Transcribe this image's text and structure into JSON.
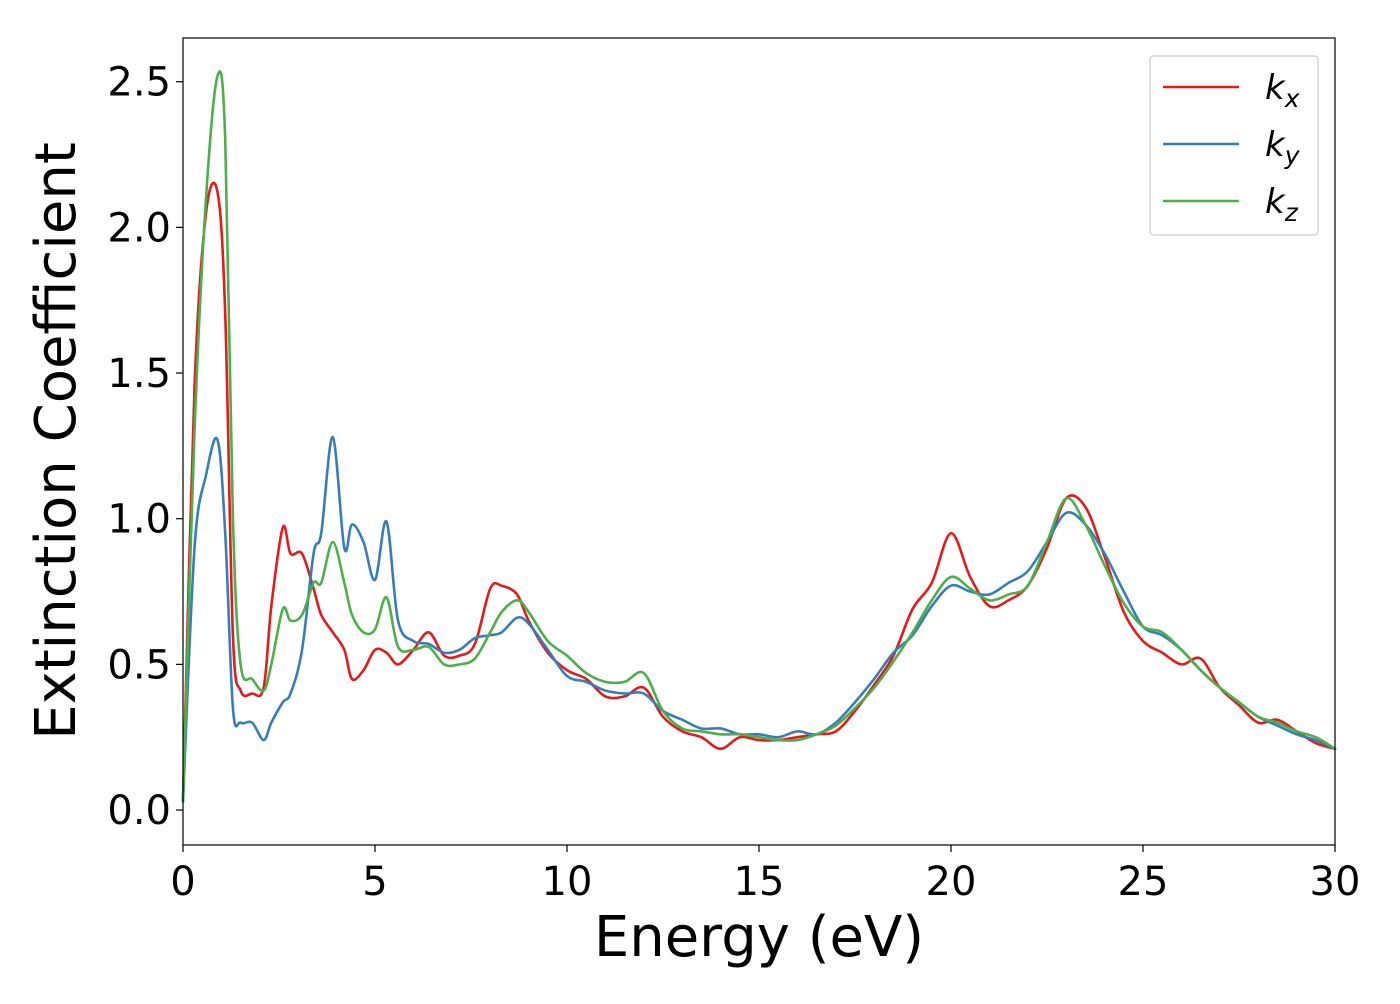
{
  "chart_data": {
    "type": "line",
    "title": "",
    "xlabel": "Energy (eV)",
    "ylabel": "Extinction Coefficient",
    "xlim": [
      0,
      30
    ],
    "ylim": [
      -0.12,
      2.65
    ],
    "xticks": [
      0,
      5,
      10,
      15,
      20,
      25,
      30
    ],
    "yticks": [
      0.0,
      0.5,
      1.0,
      1.5,
      2.0,
      2.5
    ],
    "xtick_labels": [
      "0",
      "5",
      "10",
      "15",
      "20",
      "25",
      "30"
    ],
    "ytick_labels": [
      "0.0",
      "0.5",
      "1.0",
      "1.5",
      "2.0",
      "2.5"
    ],
    "grid": false,
    "legend_position": "top-right",
    "series": [
      {
        "name": "k",
        "subscript": "x",
        "color": "#e41a1c",
        "x": [
          0,
          0.3,
          0.6,
          0.9,
          1.1,
          1.3,
          1.5,
          1.8,
          2.1,
          2.3,
          2.6,
          2.8,
          3.1,
          3.4,
          3.6,
          3.9,
          4.2,
          4.4,
          4.7,
          5.0,
          5.3,
          5.6,
          6.0,
          6.4,
          6.8,
          7.2,
          7.6,
          8.0,
          8.3,
          8.7,
          9.0,
          9.5,
          10.0,
          10.5,
          11.0,
          11.5,
          12.0,
          12.5,
          13.0,
          13.5,
          14.0,
          14.5,
          15.0,
          15.5,
          16.0,
          16.5,
          17.0,
          17.5,
          18.0,
          18.5,
          19.0,
          19.5,
          20.0,
          20.5,
          21.0,
          21.5,
          22.0,
          22.5,
          23.0,
          23.5,
          24.0,
          24.5,
          25.0,
          25.5,
          26.0,
          26.5,
          27.0,
          27.5,
          28.0,
          28.5,
          29.0,
          29.5,
          30.0
        ],
        "y": [
          0.03,
          1.45,
          2.05,
          2.12,
          1.7,
          0.6,
          0.41,
          0.4,
          0.42,
          0.7,
          0.97,
          0.88,
          0.88,
          0.76,
          0.67,
          0.61,
          0.55,
          0.45,
          0.48,
          0.55,
          0.54,
          0.5,
          0.55,
          0.61,
          0.53,
          0.53,
          0.57,
          0.76,
          0.77,
          0.74,
          0.65,
          0.54,
          0.48,
          0.45,
          0.39,
          0.39,
          0.42,
          0.32,
          0.27,
          0.25,
          0.21,
          0.25,
          0.24,
          0.24,
          0.25,
          0.26,
          0.27,
          0.34,
          0.43,
          0.53,
          0.69,
          0.78,
          0.95,
          0.8,
          0.7,
          0.72,
          0.77,
          0.9,
          1.07,
          1.04,
          0.87,
          0.68,
          0.58,
          0.54,
          0.5,
          0.52,
          0.42,
          0.36,
          0.3,
          0.31,
          0.27,
          0.23,
          0.21
        ]
      },
      {
        "name": "k",
        "subscript": "y",
        "color": "#377eb8",
        "x": [
          0,
          0.3,
          0.6,
          0.9,
          1.1,
          1.3,
          1.5,
          1.8,
          2.1,
          2.3,
          2.6,
          2.8,
          3.1,
          3.4,
          3.6,
          3.9,
          4.2,
          4.4,
          4.7,
          5.0,
          5.3,
          5.6,
          6.0,
          6.4,
          6.8,
          7.2,
          7.6,
          8.0,
          8.3,
          8.7,
          9.0,
          9.5,
          10.0,
          10.5,
          11.0,
          11.5,
          12.0,
          12.5,
          13.0,
          13.5,
          14.0,
          14.5,
          15.0,
          15.5,
          16.0,
          16.5,
          17.0,
          17.5,
          18.0,
          18.5,
          19.0,
          19.5,
          20.0,
          20.5,
          21.0,
          21.5,
          22.0,
          22.5,
          23.0,
          23.5,
          24.0,
          24.5,
          25.0,
          25.5,
          26.0,
          26.5,
          27.0,
          27.5,
          28.0,
          28.5,
          29.0,
          29.5,
          30.0
        ],
        "y": [
          0.03,
          0.9,
          1.15,
          1.27,
          0.95,
          0.35,
          0.3,
          0.3,
          0.24,
          0.3,
          0.37,
          0.4,
          0.55,
          0.88,
          0.95,
          1.28,
          0.9,
          0.98,
          0.92,
          0.79,
          0.99,
          0.65,
          0.58,
          0.57,
          0.54,
          0.55,
          0.59,
          0.6,
          0.61,
          0.66,
          0.64,
          0.55,
          0.46,
          0.44,
          0.41,
          0.4,
          0.4,
          0.34,
          0.31,
          0.28,
          0.28,
          0.26,
          0.26,
          0.25,
          0.27,
          0.26,
          0.3,
          0.37,
          0.45,
          0.54,
          0.6,
          0.7,
          0.77,
          0.75,
          0.74,
          0.78,
          0.82,
          0.92,
          1.02,
          0.98,
          0.88,
          0.75,
          0.63,
          0.6,
          0.55,
          0.48,
          0.42,
          0.37,
          0.32,
          0.29,
          0.26,
          0.24,
          0.21
        ]
      },
      {
        "name": "k",
        "subscript": "z",
        "color": "#4daf4a",
        "x": [
          0,
          0.3,
          0.6,
          0.9,
          1.1,
          1.3,
          1.5,
          1.8,
          2.1,
          2.3,
          2.6,
          2.8,
          3.1,
          3.4,
          3.6,
          3.9,
          4.2,
          4.4,
          4.7,
          5.0,
          5.3,
          5.6,
          6.0,
          6.4,
          6.8,
          7.2,
          7.6,
          8.0,
          8.3,
          8.7,
          9.0,
          9.5,
          10.0,
          10.5,
          11.0,
          11.5,
          12.0,
          12.5,
          13.0,
          13.5,
          14.0,
          14.5,
          15.0,
          15.5,
          16.0,
          16.5,
          17.0,
          17.5,
          18.0,
          18.5,
          19.0,
          19.5,
          20.0,
          20.5,
          21.0,
          21.5,
          22.0,
          22.5,
          23.0,
          23.5,
          24.0,
          24.5,
          25.0,
          25.5,
          26.0,
          26.5,
          27.0,
          27.5,
          28.0,
          28.5,
          29.0,
          29.5,
          30.0
        ],
        "y": [
          0.03,
          1.3,
          2.1,
          2.52,
          2.3,
          1.0,
          0.5,
          0.45,
          0.41,
          0.5,
          0.69,
          0.65,
          0.67,
          0.78,
          0.78,
          0.92,
          0.78,
          0.67,
          0.61,
          0.62,
          0.73,
          0.56,
          0.55,
          0.56,
          0.5,
          0.5,
          0.52,
          0.61,
          0.68,
          0.72,
          0.68,
          0.58,
          0.53,
          0.47,
          0.44,
          0.44,
          0.47,
          0.34,
          0.28,
          0.27,
          0.26,
          0.26,
          0.25,
          0.24,
          0.24,
          0.26,
          0.29,
          0.35,
          0.42,
          0.51,
          0.61,
          0.72,
          0.8,
          0.76,
          0.72,
          0.74,
          0.77,
          0.92,
          1.07,
          0.98,
          0.84,
          0.71,
          0.63,
          0.61,
          0.55,
          0.48,
          0.42,
          0.37,
          0.32,
          0.3,
          0.27,
          0.25,
          0.21
        ]
      }
    ]
  }
}
